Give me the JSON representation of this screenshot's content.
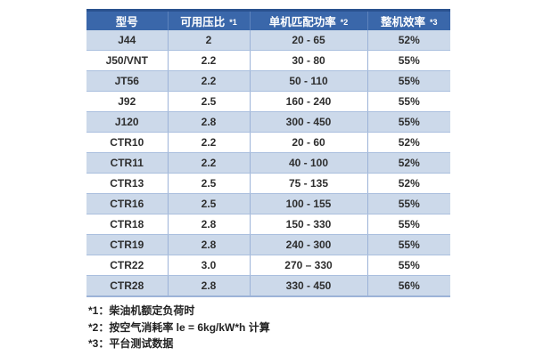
{
  "chart_data": {
    "type": "table",
    "headers": [
      {
        "label": "型号",
        "note": ""
      },
      {
        "label": "可用压比",
        "note": "*1"
      },
      {
        "label": "单机匹配功率",
        "note": "*2"
      },
      {
        "label": "整机效率",
        "note": "*3"
      }
    ],
    "column_names_en": [
      "model",
      "available-pressure-ratio",
      "matched-power-range",
      "overall-efficiency"
    ],
    "rows": [
      [
        "J44",
        "2",
        "20 - 65",
        "52%"
      ],
      [
        "J50/VNT",
        "2.2",
        "30 - 80",
        "55%"
      ],
      [
        "JT56",
        "2.2",
        "50 - 110",
        "55%"
      ],
      [
        "J92",
        "2.5",
        "160 - 240",
        "55%"
      ],
      [
        "J120",
        "2.8",
        "300 - 450",
        "55%"
      ],
      [
        "CTR10",
        "2.2",
        "20 - 60",
        "52%"
      ],
      [
        "CTR11",
        "2.2",
        "40 - 100",
        "52%"
      ],
      [
        "CTR13",
        "2.5",
        "75 - 135",
        "52%"
      ],
      [
        "CTR16",
        "2.5",
        "100 - 155",
        "55%"
      ],
      [
        "CTR18",
        "2.8",
        "150 - 330",
        "55%"
      ],
      [
        "CTR19",
        "2.8",
        "240 - 300",
        "55%"
      ],
      [
        "CTR22",
        "3.0",
        "270 – 330",
        "55%"
      ],
      [
        "CTR28",
        "2.8",
        "330 - 450",
        "56%"
      ]
    ],
    "layout": {
      "banding": "odd rows light blue, even rows white",
      "legend": "none",
      "grid": "vertical and horizontal blue separators"
    }
  },
  "footnotes": [
    "*1：柴油机额定负荷时",
    "*2：按空气消耗率 le = 6kg/kW*h 计算",
    "*3：平台测试数据"
  ],
  "colors": {
    "header_bg": "#3a67aa",
    "header_top_border": "#2a528f",
    "header_text": "#ffffff",
    "band_row_bg": "#ccd9ea",
    "white_row_bg": "#ffffff",
    "grid_vertical": "#9cb3d8",
    "grid_horizontal": "#aabfde",
    "body_text": "#2e2e2e",
    "footnote_text": "#222222"
  }
}
